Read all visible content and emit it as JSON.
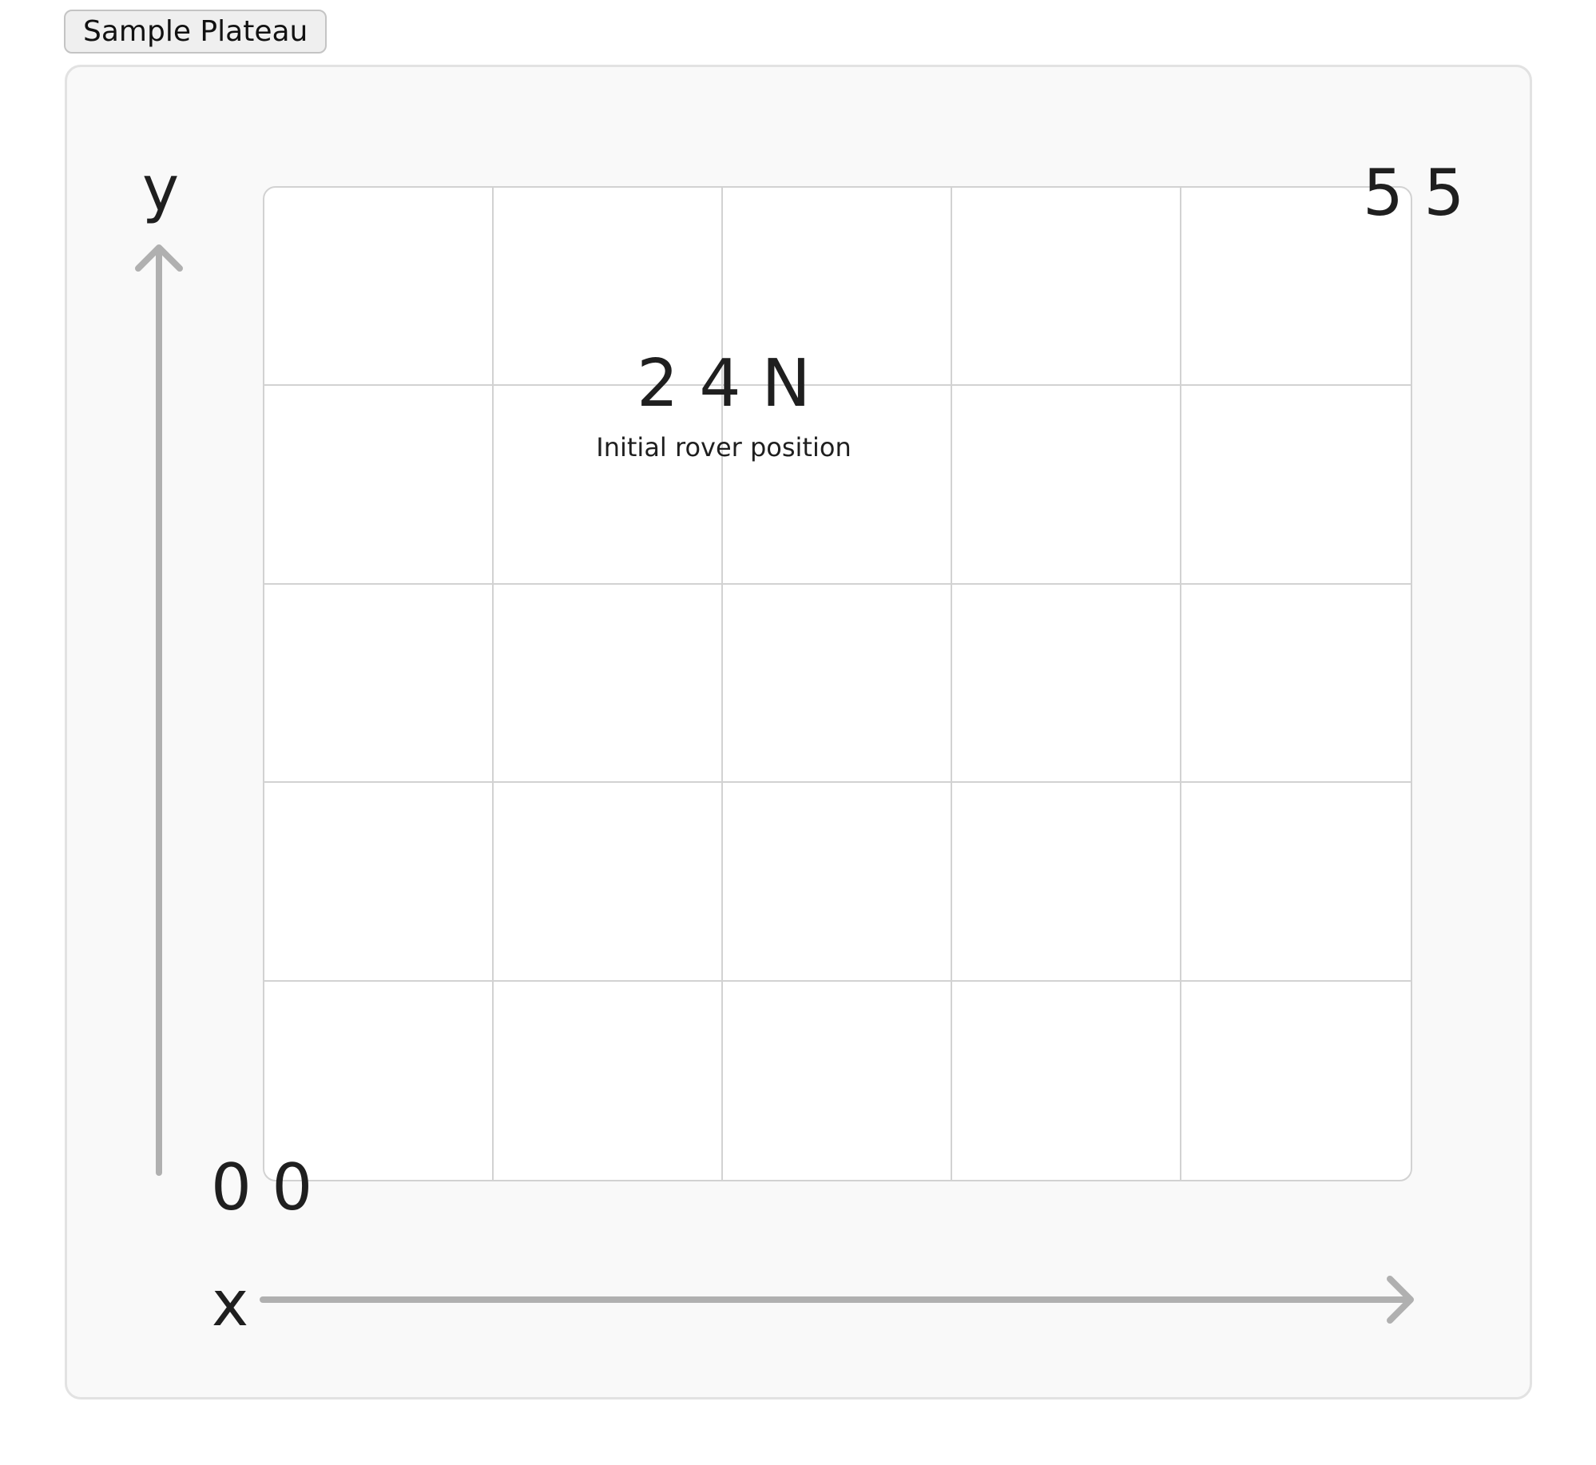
{
  "toolbar": {
    "sample_button_label": "Sample Plateau"
  },
  "plateau": {
    "grid_columns": 5,
    "grid_rows": 5,
    "origin_label": "0 0",
    "upper_right_label": "5 5",
    "x_axis_label": "x",
    "y_axis_label": "y",
    "rover": {
      "position_text": "2 4 N",
      "caption": "Initial rover position"
    }
  },
  "colors": {
    "panel_background": "#f9f9f9",
    "panel_border": "#e2e2e2",
    "grid_line": "#d2d2d2",
    "axis_arrow": "#b0b0b0",
    "text": "#1f1f1f"
  },
  "icons": {
    "y_axis": "arrow-up-icon",
    "x_axis": "arrow-right-icon"
  }
}
